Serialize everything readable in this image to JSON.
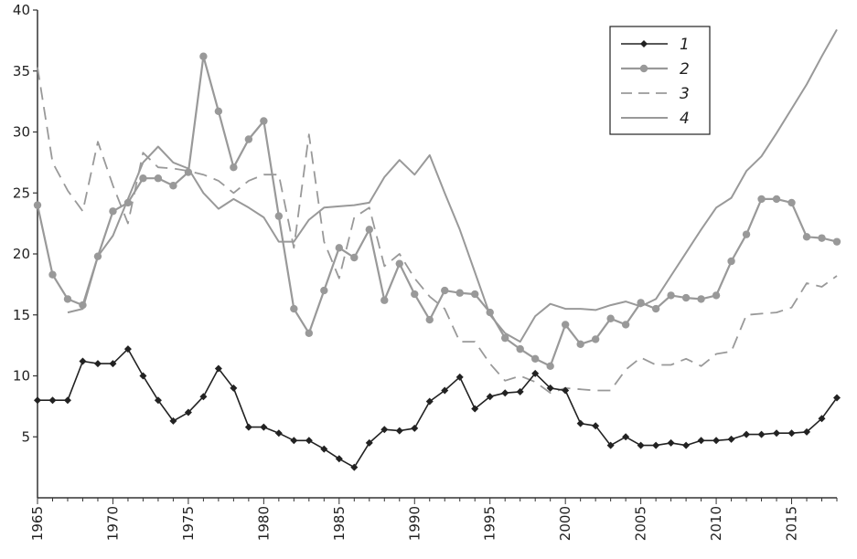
{
  "chart_data": {
    "type": "line",
    "title": "",
    "xlabel": "",
    "ylabel": "",
    "xlim": [
      1965,
      2018
    ],
    "ylim": [
      0,
      40
    ],
    "x_ticks": [
      "1965",
      "1970",
      "1975",
      "1980",
      "1985",
      "1990",
      "1995",
      "2000",
      "2005",
      "2010",
      "2015"
    ],
    "y_ticks": [
      "5",
      "10",
      "15",
      "20",
      "25",
      "30",
      "35",
      "40"
    ],
    "grid": false,
    "legend_position": "top-right",
    "colors": {
      "series_dark": "#222222",
      "series_gray": "#999999",
      "axis": "#333333"
    },
    "series": [
      {
        "name": "1",
        "style": "solid-diamond-marker",
        "x": [
          1965,
          1966,
          1967,
          1968,
          1969,
          1970,
          1971,
          1972,
          1973,
          1974,
          1975,
          1976,
          1977,
          1978,
          1979,
          1980,
          1981,
          1982,
          1983,
          1984,
          1985,
          1986,
          1987,
          1988,
          1989,
          1990,
          1991,
          1992,
          1993,
          1994,
          1995,
          1996,
          1997,
          1998,
          1999,
          2000,
          2001,
          2002,
          2003,
          2004,
          2005,
          2006,
          2007,
          2008,
          2009,
          2010,
          2011,
          2012,
          2013,
          2014,
          2015,
          2016,
          2017,
          2018
        ],
        "values": [
          8.0,
          8.0,
          8.0,
          11.2,
          11.0,
          11.0,
          12.2,
          10.0,
          8.0,
          6.3,
          7.0,
          8.3,
          10.6,
          9.0,
          5.8,
          5.8,
          5.3,
          4.7,
          4.7,
          4.0,
          3.2,
          2.5,
          4.5,
          5.6,
          5.5,
          5.7,
          7.9,
          8.8,
          9.9,
          7.3,
          8.3,
          8.6,
          8.7,
          10.2,
          9.0,
          8.8,
          6.1,
          5.9,
          4.3,
          5.0,
          4.3,
          4.3,
          4.5,
          4.3,
          4.7,
          4.7,
          4.8,
          5.2,
          5.2,
          5.3,
          5.3,
          5.4,
          6.5,
          8.2
        ]
      },
      {
        "name": "2",
        "style": "gray-circle-marker",
        "x": [
          1965,
          1966,
          1967,
          1968,
          1969,
          1970,
          1971,
          1972,
          1973,
          1974,
          1975,
          1976,
          1977,
          1978,
          1979,
          1980,
          1981,
          1982,
          1983,
          1984,
          1985,
          1986,
          1987,
          1988,
          1989,
          1990,
          1991,
          1992,
          1993,
          1994,
          1995,
          1996,
          1997,
          1998,
          1999,
          2000,
          2001,
          2002,
          2003,
          2004,
          2005,
          2006,
          2007,
          2008,
          2009,
          2010,
          2011,
          2012,
          2013,
          2014,
          2015,
          2016,
          2017,
          2018
        ],
        "values": [
          24.0,
          18.3,
          16.3,
          15.8,
          19.8,
          23.5,
          24.2,
          26.2,
          26.2,
          25.6,
          26.7,
          36.2,
          31.7,
          27.1,
          29.4,
          30.9,
          23.1,
          15.5,
          13.5,
          17.0,
          20.5,
          19.7,
          22.0,
          16.2,
          19.2,
          16.7,
          14.6,
          17.0,
          16.8,
          16.7,
          15.2,
          13.1,
          12.2,
          11.4,
          10.8,
          14.2,
          12.6,
          13.0,
          14.7,
          14.2,
          16.0,
          15.5,
          16.6,
          16.4,
          16.3,
          16.6,
          19.4,
          21.6,
          24.5,
          24.5,
          24.2,
          21.4,
          21.3,
          21.0
        ]
      },
      {
        "name": "3",
        "style": "gray-dashed",
        "x": [
          1965,
          1966,
          1967,
          1968,
          1969,
          1970,
          1971,
          1972,
          1973,
          1974,
          1975,
          1976,
          1977,
          1978,
          1979,
          1980,
          1981,
          1982,
          1983,
          1984,
          1985,
          1986,
          1987,
          1988,
          1989,
          1990,
          1991,
          1992,
          1993,
          1994,
          1995,
          1996,
          1997,
          1998,
          1999,
          2000,
          2001,
          2002,
          2003,
          2004,
          2005,
          2006,
          2007,
          2008,
          2009,
          2010,
          2011,
          2012,
          2013,
          2014,
          2015,
          2016,
          2017,
          2018
        ],
        "values": [
          35.3,
          27.5,
          25.2,
          23.5,
          29.2,
          25.6,
          22.5,
          28.3,
          27.1,
          27.0,
          26.8,
          26.5,
          26.0,
          25.0,
          26.0,
          26.5,
          26.5,
          20.5,
          29.8,
          21.0,
          18.0,
          23.0,
          23.8,
          19.0,
          20.0,
          18.0,
          16.5,
          15.5,
          12.8,
          12.8,
          11.0,
          9.6,
          10.0,
          9.5,
          8.6,
          9.0,
          8.9,
          8.8,
          8.8,
          10.5,
          11.5,
          10.9,
          10.9,
          11.4,
          10.8,
          11.8,
          12.0,
          15.0,
          15.1,
          15.2,
          15.6,
          17.6,
          17.3,
          18.2
        ]
      },
      {
        "name": "4",
        "style": "gray-solid",
        "x": [
          1967,
          1968,
          1969,
          1970,
          1971,
          1972,
          1973,
          1974,
          1975,
          1976,
          1977,
          1978,
          1979,
          1980,
          1981,
          1982,
          1983,
          1984,
          1985,
          1986,
          1987,
          1988,
          1989,
          1990,
          1991,
          1992,
          1993,
          1994,
          1995,
          1996,
          1997,
          1998,
          1999,
          2000,
          2001,
          2002,
          2003,
          2004,
          2005,
          2006,
          2007,
          2008,
          2009,
          2010,
          2011,
          2012,
          2013,
          2014,
          2015,
          2016,
          2017,
          2018
        ],
        "values": [
          15.2,
          15.5,
          19.8,
          21.5,
          24.5,
          27.5,
          28.8,
          27.5,
          27.0,
          25.0,
          23.7,
          24.5,
          23.8,
          23.0,
          21.0,
          21.0,
          22.8,
          23.8,
          23.9,
          24.0,
          24.2,
          26.3,
          27.7,
          26.5,
          28.1,
          25.0,
          22.0,
          18.5,
          15.0,
          13.5,
          12.8,
          14.9,
          15.9,
          15.5,
          15.5,
          15.4,
          15.8,
          16.1,
          15.7,
          16.3,
          18.2,
          20.1,
          22.0,
          23.8,
          24.6,
          26.8,
          28.0,
          29.9,
          31.9,
          33.9,
          36.2,
          38.4
        ]
      }
    ]
  }
}
